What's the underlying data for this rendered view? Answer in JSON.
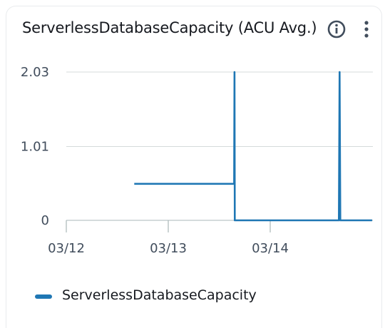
{
  "widget": {
    "title": "ServerlessDatabaseCapacity (ACU Avg.)",
    "info_icon": "info-circle-icon",
    "menu_icon": "vertical-ellipsis-icon"
  },
  "colors": {
    "series": "#1f77b4",
    "grid": "#d5dbdb",
    "axis": "#aab7b8",
    "text": "#414d5c"
  },
  "chart_data": {
    "type": "line",
    "title": "ServerlessDatabaseCapacity (ACU Avg.)",
    "xlabel": "",
    "ylabel": "",
    "x_ticks": [
      "03/12",
      "03/13",
      "03/14"
    ],
    "y_ticks": [
      "0",
      "1.01",
      "2.03"
    ],
    "ylim": [
      0,
      2.03
    ],
    "xlim_days": [
      0,
      3.0
    ],
    "grid": true,
    "legend_position": "bottom",
    "series": [
      {
        "name": "ServerlessDatabaseCapacity",
        "points": [
          {
            "x": "03/12 16:00",
            "y": 0.5
          },
          {
            "x": "03/13 15:30",
            "y": 0.5
          },
          {
            "x": "03/13 15:35",
            "y": 2.03
          },
          {
            "x": "03/13 15:40",
            "y": 0.0
          },
          {
            "x": "03/14 16:10",
            "y": 0.0
          },
          {
            "x": "03/14 16:20",
            "y": 2.03
          },
          {
            "x": "03/14 16:30",
            "y": 0.0
          },
          {
            "x": "03/14 23:59",
            "y": 0.0
          }
        ]
      }
    ]
  }
}
